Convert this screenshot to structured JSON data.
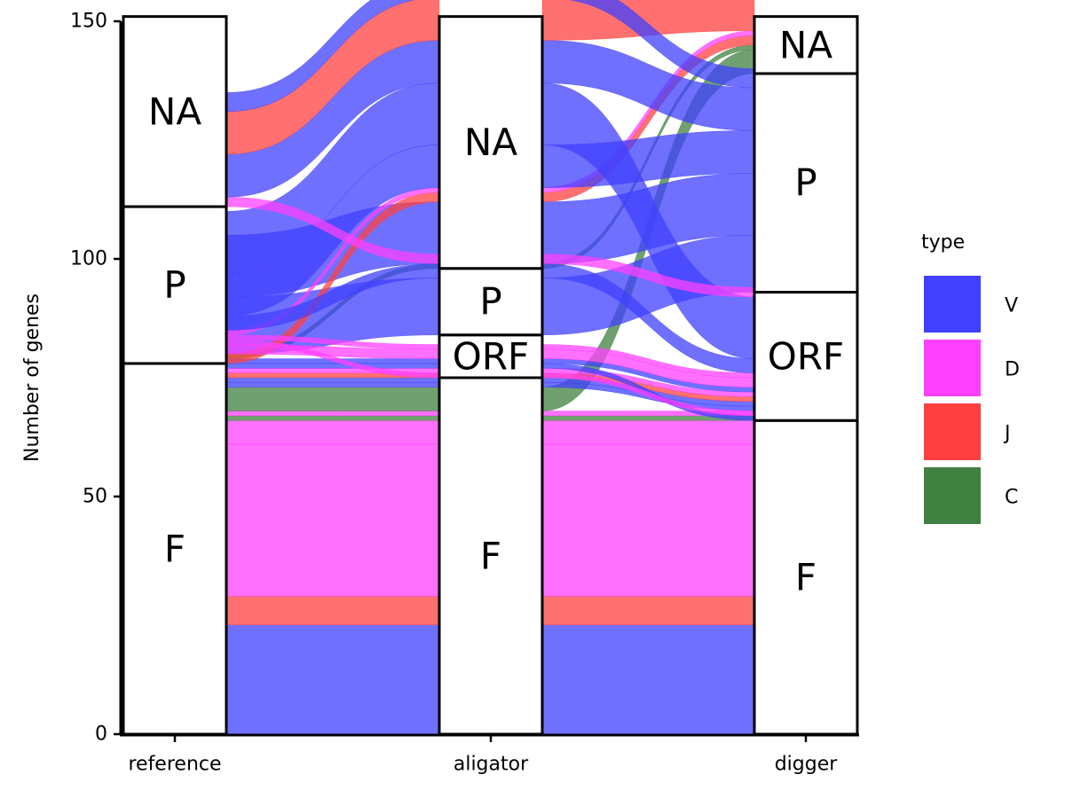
{
  "chart_data": {
    "type": "alluvial",
    "ylabel": "Number of genes",
    "ylim": [
      0,
      150
    ],
    "yticks": [
      0,
      50,
      100,
      150
    ],
    "axes": [
      "reference",
      "aligator",
      "digger"
    ],
    "strata": {
      "reference": [
        {
          "label": "F",
          "count": 78
        },
        {
          "label": "P",
          "count": 33
        },
        {
          "label": "NA",
          "count": 40
        }
      ],
      "aligator": [
        {
          "label": "F",
          "count": 75
        },
        {
          "label": "ORF",
          "count": 9
        },
        {
          "label": "P",
          "count": 14
        },
        {
          "label": "NA",
          "count": 53
        }
      ],
      "digger": [
        {
          "label": "F",
          "count": 66
        },
        {
          "label": "ORF",
          "count": 27
        },
        {
          "label": "P",
          "count": 46
        },
        {
          "label": "NA",
          "count": 12
        }
      ]
    },
    "legend": {
      "title": "type",
      "entries": [
        {
          "label": "V",
          "color": "#4040ff"
        },
        {
          "label": "D",
          "color": "#ff40ff"
        },
        {
          "label": "J",
          "color": "#ff4040"
        },
        {
          "label": "C",
          "color": "#408040"
        }
      ],
      "placement": "right"
    },
    "flows": [
      {
        "type": "V",
        "path": [
          "F",
          "F",
          "F"
        ],
        "count": 23
      },
      {
        "type": "J",
        "path": [
          "F",
          "F",
          "F"
        ],
        "count": 6
      },
      {
        "type": "D",
        "path": [
          "F",
          "F",
          "F"
        ],
        "count": 32
      },
      {
        "type": "D",
        "path": [
          "F",
          "F",
          "F"
        ],
        "count": 5
      },
      {
        "type": "C",
        "path": [
          "F",
          "F",
          "ORF"
        ],
        "count": 1
      },
      {
        "type": "D",
        "path": [
          "F",
          "F",
          "ORF"
        ],
        "count": 1
      },
      {
        "type": "C",
        "path": [
          "F",
          "F",
          "NA"
        ],
        "count": 5
      },
      {
        "type": "V",
        "path": [
          "F",
          "F",
          "ORF"
        ],
        "count": 1
      },
      {
        "type": "V",
        "path": [
          "F",
          "F",
          "ORF"
        ],
        "count": 1
      },
      {
        "type": "J",
        "path": [
          "F",
          "ORF",
          "ORF"
        ],
        "count": 1
      },
      {
        "type": "D",
        "path": [
          "F",
          "ORF",
          "ORF"
        ],
        "count": 1
      },
      {
        "type": "V",
        "path": [
          "F",
          "ORF",
          "F"
        ],
        "count": 1
      },
      {
        "type": "V",
        "path": [
          "F",
          "ORF",
          "ORF"
        ],
        "count": 1
      },
      {
        "type": "C",
        "path": [
          "F",
          "NA",
          "NA"
        ],
        "count": 1
      },
      {
        "type": "V",
        "path": [
          "F",
          "P",
          "P"
        ],
        "count": 12
      },
      {
        "type": "V",
        "path": [
          "F",
          "NA",
          "P"
        ],
        "count": 13
      },
      {
        "type": "J",
        "path": [
          "P",
          "NA",
          "NA"
        ],
        "count": 2
      },
      {
        "type": "D",
        "path": [
          "P",
          "ORF",
          "ORF"
        ],
        "count": 2
      },
      {
        "type": "D",
        "path": [
          "P",
          "F",
          "F"
        ],
        "count": 1
      },
      {
        "type": "D",
        "path": [
          "P",
          "ORF",
          "ORF"
        ],
        "count": 1
      },
      {
        "type": "D",
        "path": [
          "P",
          "NA",
          "NA"
        ],
        "count": 1
      },
      {
        "type": "V",
        "path": [
          "P",
          "P",
          "ORF"
        ],
        "count": 3
      },
      {
        "type": "V",
        "path": [
          "P",
          "NA",
          "P"
        ],
        "count": 9
      },
      {
        "type": "V",
        "path": [
          "P",
          "NA",
          "ORF"
        ],
        "count": 13
      },
      {
        "type": "D",
        "path": [
          "NA",
          "P",
          "ORF"
        ],
        "count": 2
      },
      {
        "type": "V",
        "path": [
          "NA",
          "NA",
          "P"
        ],
        "count": 9
      },
      {
        "type": "J",
        "path": [
          "NA",
          "NA",
          "NA"
        ],
        "count": 9
      },
      {
        "type": "V",
        "path": [
          "NA",
          "NA",
          "P"
        ],
        "count": 4
      }
    ]
  }
}
